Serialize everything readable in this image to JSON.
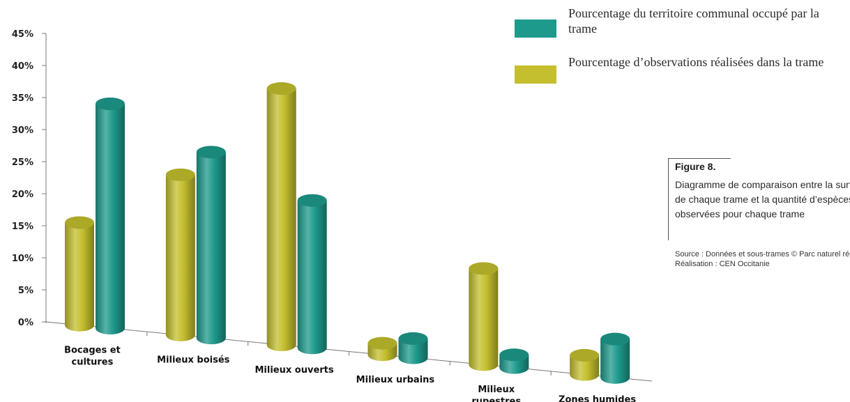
{
  "chart_data": {
    "type": "bar",
    "categories": [
      "Bocages et cultures",
      "Milieux boisés",
      "Milieux ouverts",
      "Milieux urbains",
      "Milieux rupestres",
      "Zones humides"
    ],
    "series": [
      {
        "name": "Pourcentage d’observations réalisées dans la trame",
        "color": "#c4bf2e",
        "values": [
          16,
          25,
          40,
          1.8,
          15,
          3
        ]
      },
      {
        "name": "Pourcentage du territoire communal occupé par la trame",
        "color": "#1e9a8c",
        "values": [
          35,
          29,
          23,
          3,
          2,
          6
        ]
      }
    ],
    "yticks": [
      "0%",
      "5%",
      "10%",
      "15%",
      "20%",
      "25%",
      "30%",
      "35%",
      "40%",
      "45%"
    ],
    "ylim": [
      0,
      45
    ],
    "xlabel": "",
    "ylabel": ""
  },
  "legend": {
    "items": [
      {
        "label": "Pourcentage du territoire communal occupé par la trame",
        "color": "#1e9a8c"
      },
      {
        "label": "Pourcentage d’observations réalisées dans la trame",
        "color": "#c4bf2e"
      }
    ]
  },
  "figure": {
    "title": "Figure 8.",
    "caption_lines": [
      "Diagramme de comparaison entre la surface",
      "de chaque trame et la quantité d’espèces",
      "observées pour chaque trame"
    ]
  },
  "source": {
    "line1": "Source : Données et sous-trames © Parc naturel régional",
    "line2": "Réalisation : CEN Occitanie"
  }
}
